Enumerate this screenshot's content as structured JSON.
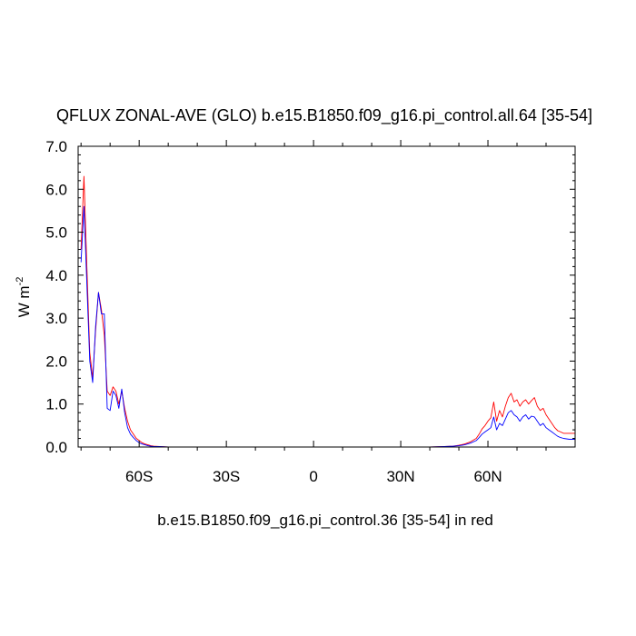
{
  "chart_data": {
    "type": "line",
    "title": "QFLUX ZONAL-AVE (GLO) b.e15.B1850.f09_g16.pi_control.all.64 [35-54]",
    "xlabel": "b.e15.B1850.f09_g16.pi_control.36 [35-54] in red",
    "ylabel": "W m",
    "ylabel_superscript": "-2",
    "xlim": [
      -81,
      90
    ],
    "ylim": [
      0,
      7
    ],
    "x_ticks": [
      {
        "value": -60,
        "label": "60S"
      },
      {
        "value": -30,
        "label": "30S"
      },
      {
        "value": 0,
        "label": "0"
      },
      {
        "value": 30,
        "label": "30N"
      },
      {
        "value": 60,
        "label": "60N"
      }
    ],
    "y_ticks": [
      {
        "value": 0,
        "label": "0.0"
      },
      {
        "value": 1,
        "label": "1.0"
      },
      {
        "value": 2,
        "label": "2.0"
      },
      {
        "value": 3,
        "label": "3.0"
      },
      {
        "value": 4,
        "label": "4.0"
      },
      {
        "value": 5,
        "label": "5.0"
      },
      {
        "value": 6,
        "label": "6.0"
      },
      {
        "value": 7,
        "label": "7.0"
      }
    ],
    "grid": false,
    "series": [
      {
        "color": "#ff0000",
        "x": [
          -80,
          -79,
          -78,
          -77,
          -76,
          -75,
          -74,
          -73,
          -72,
          -71,
          -70,
          -69,
          -68,
          -67,
          -66,
          -65,
          -64,
          -63,
          -62,
          -61,
          -60,
          -59,
          -58,
          -57,
          -56,
          -55,
          -53,
          -50,
          -45,
          -40,
          -20,
          0,
          20,
          40,
          45,
          48,
          50,
          52,
          54,
          56,
          57,
          58,
          59,
          60,
          61,
          62,
          63,
          64,
          65,
          66,
          67,
          68,
          69,
          70,
          71,
          72,
          73,
          74,
          75,
          76,
          77,
          78,
          79,
          80,
          81,
          82,
          83,
          84,
          85,
          86,
          88,
          90
        ],
        "y": [
          4.6,
          6.3,
          4.2,
          2.2,
          1.6,
          2.7,
          3.6,
          3.2,
          2.6,
          1.3,
          1.2,
          1.4,
          1.3,
          1.0,
          1.3,
          0.9,
          0.6,
          0.4,
          0.3,
          0.2,
          0.15,
          0.1,
          0.07,
          0.05,
          0.03,
          0.02,
          0.01,
          0.0,
          0.0,
          0.0,
          0.0,
          0.0,
          0.0,
          0.0,
          0.01,
          0.02,
          0.04,
          0.07,
          0.12,
          0.2,
          0.3,
          0.42,
          0.5,
          0.6,
          0.68,
          1.05,
          0.6,
          0.85,
          0.7,
          0.95,
          1.15,
          1.25,
          1.05,
          1.1,
          0.95,
          1.05,
          1.1,
          1.0,
          1.08,
          1.15,
          0.95,
          0.85,
          0.9,
          0.75,
          0.65,
          0.55,
          0.45,
          0.38,
          0.35,
          0.32,
          0.32,
          0.32
        ]
      },
      {
        "color": "#0000ff",
        "x": [
          -80,
          -79,
          -78,
          -77,
          -76,
          -75,
          -74,
          -73,
          -72,
          -71,
          -70,
          -69,
          -68,
          -67,
          -66,
          -65,
          -64,
          -63,
          -62,
          -61,
          -60,
          -59,
          -58,
          -57,
          -56,
          -55,
          -53,
          -50,
          -45,
          -40,
          -20,
          0,
          20,
          40,
          45,
          48,
          50,
          52,
          54,
          56,
          57,
          58,
          59,
          60,
          61,
          62,
          63,
          64,
          65,
          66,
          67,
          68,
          69,
          70,
          71,
          72,
          73,
          74,
          75,
          76,
          77,
          78,
          79,
          80,
          81,
          82,
          83,
          84,
          85,
          86,
          88,
          90
        ],
        "y": [
          4.3,
          5.6,
          3.8,
          2.0,
          1.5,
          2.8,
          3.6,
          3.1,
          3.1,
          0.9,
          0.85,
          1.3,
          1.2,
          0.9,
          1.35,
          0.8,
          0.45,
          0.3,
          0.22,
          0.15,
          0.1,
          0.07,
          0.05,
          0.03,
          0.02,
          0.01,
          0.01,
          0.0,
          0.0,
          0.0,
          0.0,
          0.0,
          0.0,
          0.0,
          0.01,
          0.02,
          0.03,
          0.05,
          0.09,
          0.15,
          0.22,
          0.3,
          0.35,
          0.4,
          0.45,
          0.7,
          0.4,
          0.55,
          0.5,
          0.65,
          0.8,
          0.85,
          0.75,
          0.7,
          0.6,
          0.7,
          0.75,
          0.65,
          0.72,
          0.7,
          0.6,
          0.5,
          0.55,
          0.45,
          0.4,
          0.35,
          0.3,
          0.25,
          0.22,
          0.2,
          0.18,
          0.18
        ]
      }
    ]
  }
}
